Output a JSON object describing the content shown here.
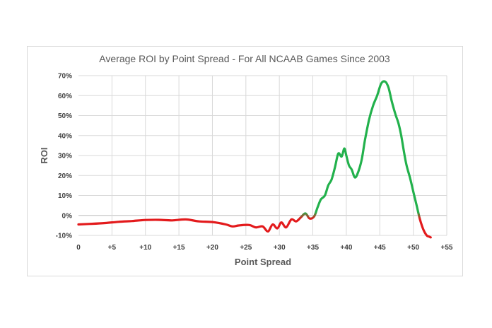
{
  "chart_data": {
    "type": "line",
    "title": "Average ROI by Point Spread - For All NCAAB Games Since 2003",
    "xlabel": "Point Spread",
    "ylabel": "ROI",
    "xlim": [
      0,
      55
    ],
    "ylim": [
      -10,
      70
    ],
    "x_ticks": [
      {
        "value": 0,
        "label": "0"
      },
      {
        "value": 5,
        "label": "+5"
      },
      {
        "value": 10,
        "label": "+10"
      },
      {
        "value": 15,
        "label": "+15"
      },
      {
        "value": 20,
        "label": "+20"
      },
      {
        "value": 25,
        "label": "+25"
      },
      {
        "value": 30,
        "label": "+30"
      },
      {
        "value": 35,
        "label": "+35"
      },
      {
        "value": 40,
        "label": "+40"
      },
      {
        "value": 45,
        "label": "+45"
      },
      {
        "value": 50,
        "label": "+50"
      },
      {
        "value": 55,
        "label": "+55"
      }
    ],
    "y_ticks": [
      {
        "value": -10,
        "label": "-10%"
      },
      {
        "value": 0,
        "label": "0%"
      },
      {
        "value": 10,
        "label": "10%"
      },
      {
        "value": 20,
        "label": "20%"
      },
      {
        "value": 30,
        "label": "30%"
      },
      {
        "value": 40,
        "label": "40%"
      },
      {
        "value": 50,
        "label": "50%"
      },
      {
        "value": 60,
        "label": "60%"
      },
      {
        "value": 70,
        "label": "70%"
      }
    ],
    "grid": true,
    "colors": {
      "negative": "#e31a1c",
      "positive": "#22b14c",
      "grid": "#d9d9d9",
      "zero_line": "#bfbfbf"
    },
    "series": [
      {
        "x": [
          0,
          2,
          4,
          6,
          8,
          10,
          12,
          14,
          16,
          18,
          20,
          22,
          23,
          24,
          25.5,
          26.5,
          27.5,
          28.3,
          29,
          29.7,
          30.3,
          31,
          31.8,
          32.5,
          33.2,
          33.9,
          34.5,
          35.2,
          35.7,
          36.2,
          36.8,
          37.3,
          37.8,
          38.3,
          38.8,
          39.3,
          39.7,
          40,
          40.4,
          40.8,
          41.3,
          41.8,
          42.3,
          42.8,
          43.4,
          44,
          44.6,
          45.2,
          45.8,
          46.3,
          46.8,
          47.3,
          47.8,
          48.2,
          48.6,
          49,
          49.5,
          50,
          50.5,
          51,
          51.5,
          52,
          52.3,
          52.6
        ],
        "y": [
          -4.5,
          -4.2,
          -3.8,
          -3.2,
          -2.8,
          -2.3,
          -2.2,
          -2.5,
          -2.0,
          -3.0,
          -3.3,
          -4.5,
          -5.5,
          -5.0,
          -4.8,
          -6.0,
          -5.5,
          -8.0,
          -4.5,
          -6.5,
          -3.5,
          -6.0,
          -2.0,
          -3.0,
          -1.0,
          1.0,
          -1.5,
          -0.5,
          4.0,
          8.0,
          10.0,
          15.0,
          18.0,
          24.0,
          31.0,
          29.5,
          33.5,
          30.0,
          25.0,
          23.0,
          19.0,
          22.0,
          28.0,
          38.0,
          48.0,
          55.0,
          60.0,
          66.0,
          67.0,
          64.0,
          57.0,
          51.0,
          46.0,
          40.0,
          32.0,
          25.0,
          19.0,
          12.0,
          5.0,
          -2.0,
          -7.0,
          -10.0,
          -10.5,
          -11.0
        ]
      }
    ]
  }
}
